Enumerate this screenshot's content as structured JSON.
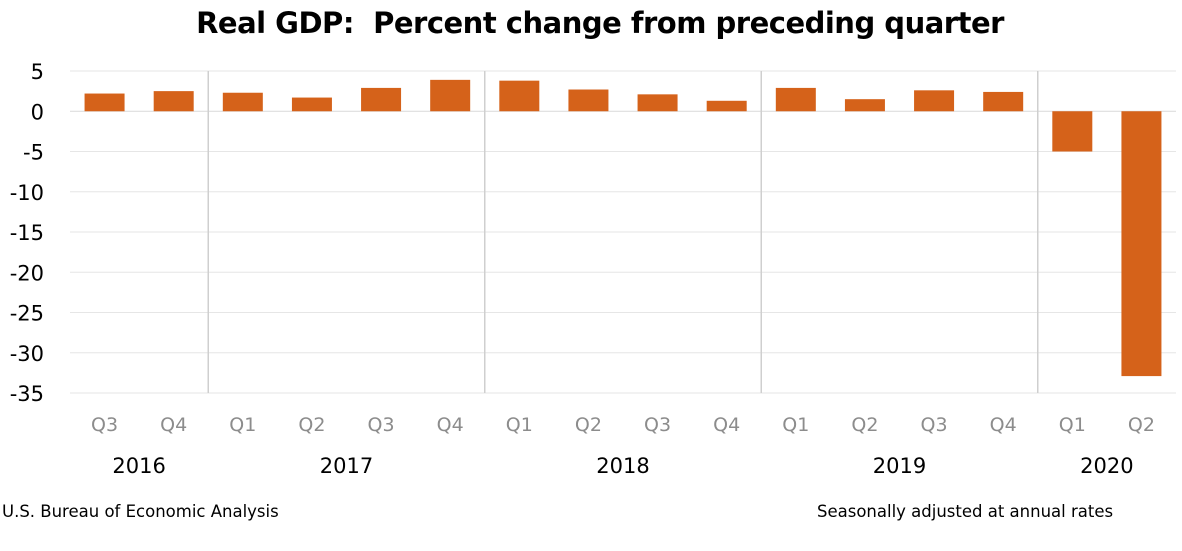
{
  "title": "Real GDP:  Percent change from preceding quarter",
  "footer": {
    "source": "U.S. Bureau of Economic Analysis",
    "note": "Seasonally adjusted at annual rates"
  },
  "colors": {
    "bar": "#d5621a",
    "gridline": "#e6e6e6",
    "year_divider": "#cfcfcf",
    "quarter_label": "#8c8c8c",
    "text": "#000000"
  },
  "chart_data": {
    "type": "bar",
    "title": "Real GDP:  Percent change from preceding quarter",
    "xlabel": "",
    "ylabel": "",
    "ylim": [
      -35,
      5
    ],
    "yticks": [
      5,
      0,
      -5,
      -10,
      -15,
      -20,
      -25,
      -30,
      -35
    ],
    "grid": true,
    "legend": "none",
    "categories": [
      "Q3",
      "Q4",
      "Q1",
      "Q2",
      "Q3",
      "Q4",
      "Q1",
      "Q2",
      "Q3",
      "Q4",
      "Q1",
      "Q2",
      "Q3",
      "Q4",
      "Q1",
      "Q2"
    ],
    "years": [
      {
        "label": "2016",
        "quarters": 2
      },
      {
        "label": "2017",
        "quarters": 4
      },
      {
        "label": "2018",
        "quarters": 4
      },
      {
        "label": "2019",
        "quarters": 4
      },
      {
        "label": "2020",
        "quarters": 2
      }
    ],
    "values": [
      2.2,
      2.5,
      2.3,
      1.7,
      2.9,
      3.9,
      3.8,
      2.7,
      2.1,
      1.3,
      2.9,
      1.5,
      2.6,
      2.4,
      -5.0,
      -32.9
    ]
  }
}
